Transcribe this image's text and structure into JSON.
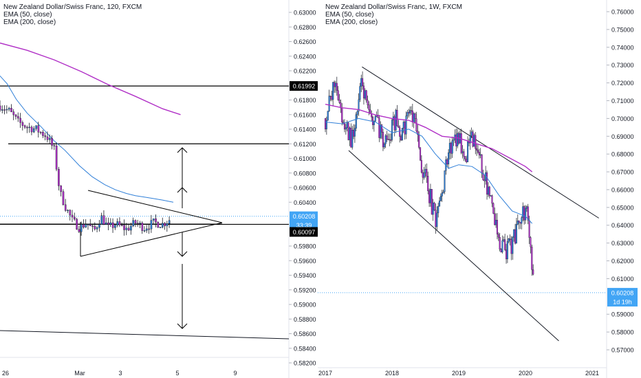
{
  "panes": [
    {
      "legend": [
        "New Zealand Dollar/Swiss Franc, 120, FXCM",
        "EMA (50, close)",
        "EMA (200, close)"
      ],
      "y_ticks": [
        "0.63000",
        "0.62800",
        "0.62600",
        "0.62400",
        "0.62200",
        "0.61800",
        "0.61600",
        "0.61400",
        "0.61200",
        "0.61000",
        "0.60800",
        "0.60600",
        "0.60400",
        "0.59800",
        "0.59600",
        "0.59400",
        "0.59200",
        "0.59000",
        "0.58800",
        "0.58600",
        "0.58400",
        "0.58200"
      ],
      "x_ticks": [
        "26",
        "Mar",
        "3",
        "5",
        "9"
      ],
      "price_labels": {
        "line_level": "0.61992",
        "current": "0.60208",
        "countdown": "33:39",
        "line_level_low": "0.60097"
      }
    },
    {
      "legend": [
        "New Zealand Dollar/Swiss Franc, 1W, FXCM",
        "EMA (50, close)",
        "EMA (200, close)"
      ],
      "y_ticks": [
        "0.76000",
        "0.75000",
        "0.74000",
        "0.73000",
        "0.72000",
        "0.71000",
        "0.70000",
        "0.69000",
        "0.68000",
        "0.67000",
        "0.66000",
        "0.65000",
        "0.64000",
        "0.63000",
        "0.62000",
        "0.61000",
        "0.59000",
        "0.58000",
        "0.57000"
      ],
      "x_ticks": [
        "2017",
        "2018",
        "2019",
        "2020",
        "2021"
      ],
      "price_labels": {
        "current": "0.60208",
        "countdown": "1d 19h"
      }
    }
  ],
  "colors": {
    "ema50": "#2f7fd8",
    "ema200": "#b02fc6",
    "candle_up": "#2f7fd8",
    "candle_down": "#b02fc6",
    "label_dark": "#000000",
    "label_blue": "#42a5f5"
  },
  "chart_data": [
    {
      "type": "candlestick",
      "symbol": "NZDCHF",
      "timeframe": "120",
      "ylim": [
        0.582,
        0.631
      ],
      "series": [
        {
          "name": "EMA (50, close)",
          "points": [
            [
              0,
              0.6213
            ],
            [
              8,
              0.6202
            ],
            [
              18,
              0.6181
            ],
            [
              30,
              0.6162
            ],
            [
              45,
              0.6144
            ],
            [
              60,
              0.6124
            ],
            [
              72,
              0.6111
            ],
            [
              88,
              0.609
            ],
            [
              102,
              0.6075
            ],
            [
              116,
              0.6064
            ],
            [
              128,
              0.6057
            ],
            [
              140,
              0.6052
            ],
            [
              150,
              0.6049
            ],
            [
              160,
              0.6047
            ],
            [
              170,
              0.6045
            ],
            [
              180,
              0.6043
            ],
            [
              192,
              0.604
            ]
          ]
        },
        {
          "name": "EMA (200, close)",
          "points": [
            [
              0,
              0.6258
            ],
            [
              30,
              0.6248
            ],
            [
              60,
              0.6235
            ],
            [
              90,
              0.6219
            ],
            [
              120,
              0.6201
            ],
            [
              150,
              0.6185
            ],
            [
              180,
              0.6168
            ],
            [
              200,
              0.616
            ]
          ]
        }
      ],
      "horizontal_lines": [
        0.61992,
        0.612,
        0.60097
      ],
      "trend_lines": [
        [
          [
            0,
            0.5865
          ],
          [
            320,
            0.5855
          ]
        ]
      ],
      "triangle": [
        [
          [
            103,
            0.597
          ],
          [
            250,
            0.6011
          ]
        ],
        [
          [
            103,
            0.597
          ],
          [
            103,
            0.6057
          ]
        ],
        [
          [
            103,
            0.6057
          ],
          [
            250,
            0.6011
          ]
        ]
      ]
    },
    {
      "type": "candlestick",
      "symbol": "NZDCHF",
      "timeframe": "1W",
      "ylim": [
        0.56,
        0.763
      ],
      "x_range": [
        "2017",
        "2021"
      ],
      "series": [
        {
          "name": "EMA (50, close)",
          "points": [
            [
              2017.0,
              0.698
            ],
            [
              2017.25,
              0.697
            ],
            [
              2017.5,
              0.7
            ],
            [
              2017.75,
              0.698
            ],
            [
              2018.0,
              0.692
            ],
            [
              2018.25,
              0.694
            ],
            [
              2018.45,
              0.69
            ],
            [
              2018.65,
              0.68
            ],
            [
              2018.85,
              0.672
            ],
            [
              2019.0,
              0.674
            ],
            [
              2019.2,
              0.673
            ],
            [
              2019.4,
              0.668
            ],
            [
              2019.6,
              0.657
            ],
            [
              2019.8,
              0.648
            ],
            [
              2020.0,
              0.645
            ],
            [
              2020.1,
              0.641
            ]
          ]
        },
        {
          "name": "EMA (200, close)",
          "points": [
            [
              2017.0,
              0.708
            ],
            [
              2017.25,
              0.706
            ],
            [
              2017.5,
              0.705
            ],
            [
              2017.75,
              0.702
            ],
            [
              2018.0,
              0.7
            ],
            [
              2018.25,
              0.699
            ],
            [
              2018.5,
              0.695
            ],
            [
              2018.75,
              0.69
            ],
            [
              2019.0,
              0.689
            ],
            [
              2019.25,
              0.686
            ],
            [
              2019.5,
              0.683
            ],
            [
              2019.75,
              0.678
            ],
            [
              2020.0,
              0.673
            ],
            [
              2020.1,
              0.67
            ]
          ]
        }
      ],
      "trend_lines": [
        [
          [
            2017.55,
            0.729
          ],
          [
            2021.1,
            0.644
          ]
        ],
        [
          [
            2017.35,
            0.682
          ],
          [
            2020.5,
            0.575
          ]
        ]
      ]
    }
  ]
}
